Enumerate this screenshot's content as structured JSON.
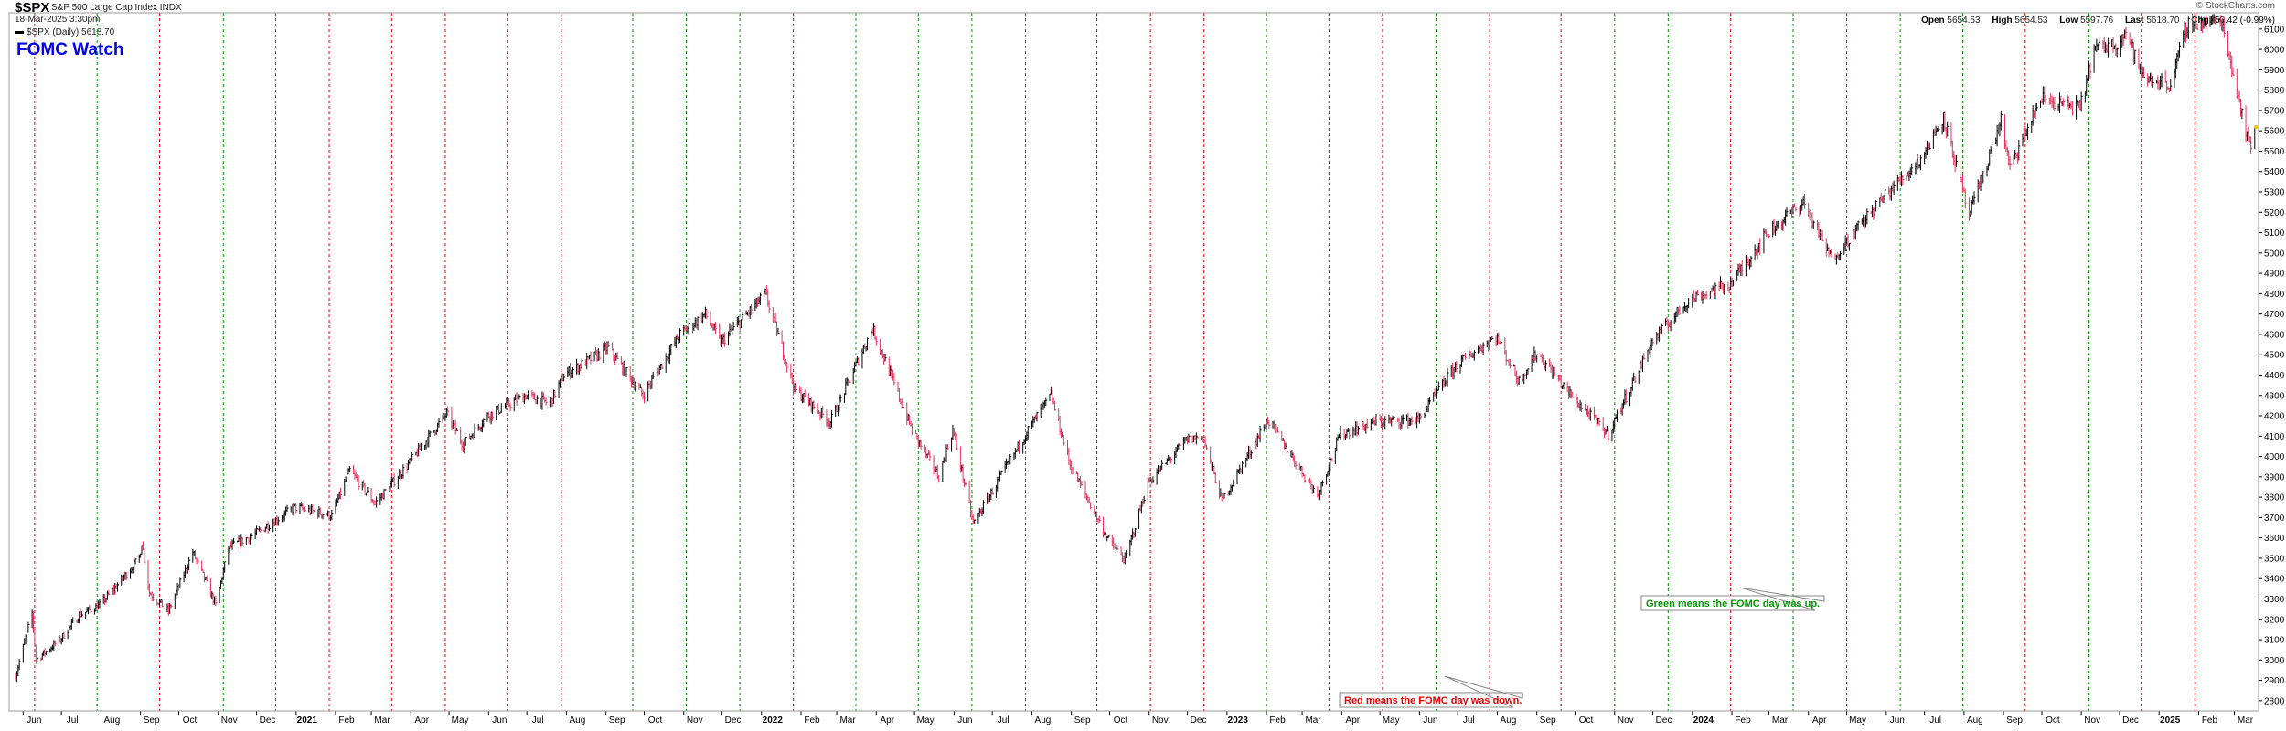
{
  "header": {
    "symbol": "$SPX",
    "description": "S&P 500 Large Cap Index",
    "exchange": "INDX",
    "datetime": "18-Mar-2025 3:30pm",
    "legend_label": "$SPX (Daily) 5618.70",
    "watermark": "© StockCharts.com",
    "quote": {
      "open_label": "Open",
      "open": "5654.53",
      "high_label": "High",
      "high": "5654.53",
      "low_label": "Low",
      "low": "5597.76",
      "last_label": "Last",
      "last": "5618.70",
      "chg_label": "Chg",
      "chg": "-56.42 (-0.99%)"
    }
  },
  "chart_data": {
    "type": "line",
    "title": "FOMC Watch",
    "ylim": [
      2750,
      6180
    ],
    "yscale": "linear",
    "y_ticks": [
      2800,
      2900,
      3000,
      3100,
      3200,
      3300,
      3400,
      3500,
      3600,
      3700,
      3800,
      3900,
      4000,
      4100,
      4200,
      4300,
      4400,
      4500,
      4600,
      4700,
      4800,
      4900,
      5000,
      5100,
      5200,
      5300,
      5400,
      5500,
      5600,
      5700,
      5800,
      5900,
      6000,
      6100
    ],
    "x_ticks": [
      {
        "label": "Jun",
        "year": false
      },
      {
        "label": "Jul",
        "year": false
      },
      {
        "label": "Aug",
        "year": false
      },
      {
        "label": "Sep",
        "year": false
      },
      {
        "label": "Oct",
        "year": false
      },
      {
        "label": "Nov",
        "year": false
      },
      {
        "label": "Dec",
        "year": false
      },
      {
        "label": "2021",
        "year": true
      },
      {
        "label": "Feb",
        "year": false
      },
      {
        "label": "Mar",
        "year": false
      },
      {
        "label": "Apr",
        "year": false
      },
      {
        "label": "May",
        "year": false
      },
      {
        "label": "Jun",
        "year": false
      },
      {
        "label": "Jul",
        "year": false
      },
      {
        "label": "Aug",
        "year": false
      },
      {
        "label": "Sep",
        "year": false
      },
      {
        "label": "Oct",
        "year": false
      },
      {
        "label": "Nov",
        "year": false
      },
      {
        "label": "Dec",
        "year": false
      },
      {
        "label": "2022",
        "year": true
      },
      {
        "label": "Feb",
        "year": false
      },
      {
        "label": "Mar",
        "year": false
      },
      {
        "label": "Apr",
        "year": false
      },
      {
        "label": "May",
        "year": false
      },
      {
        "label": "Jun",
        "year": false
      },
      {
        "label": "Jul",
        "year": false
      },
      {
        "label": "Aug",
        "year": false
      },
      {
        "label": "Sep",
        "year": false
      },
      {
        "label": "Oct",
        "year": false
      },
      {
        "label": "Nov",
        "year": false
      },
      {
        "label": "Dec",
        "year": false
      },
      {
        "label": "2023",
        "year": true
      },
      {
        "label": "Feb",
        "year": false
      },
      {
        "label": "Mar",
        "year": false
      },
      {
        "label": "Apr",
        "year": false
      },
      {
        "label": "May",
        "year": false
      },
      {
        "label": "Jun",
        "year": false
      },
      {
        "label": "Jul",
        "year": false
      },
      {
        "label": "Aug",
        "year": false
      },
      {
        "label": "Sep",
        "year": false
      },
      {
        "label": "Oct",
        "year": false
      },
      {
        "label": "Nov",
        "year": false
      },
      {
        "label": "Dec",
        "year": false
      },
      {
        "label": "2024",
        "year": true
      },
      {
        "label": "Feb",
        "year": false
      },
      {
        "label": "Mar",
        "year": false
      },
      {
        "label": "Apr",
        "year": false
      },
      {
        "label": "May",
        "year": false
      },
      {
        "label": "Jun",
        "year": false
      },
      {
        "label": "Jul",
        "year": false
      },
      {
        "label": "Aug",
        "year": false
      },
      {
        "label": "Sep",
        "year": false
      },
      {
        "label": "Oct",
        "year": false
      },
      {
        "label": "Nov",
        "year": false
      },
      {
        "label": "Dec",
        "year": false
      },
      {
        "label": "2025",
        "year": true
      },
      {
        "label": "Feb",
        "year": false
      },
      {
        "label": "Mar",
        "year": false
      }
    ],
    "fomc_markers": [
      {
        "date": "2020-06-10",
        "result": "down"
      },
      {
        "date": "2020-07-29",
        "result": "up"
      },
      {
        "date": "2020-09-16",
        "result": "down"
      },
      {
        "date": "2020-11-05",
        "result": "up"
      },
      {
        "date": "2020-12-16",
        "result": "up"
      },
      {
        "date": "2021-01-27",
        "result": "down"
      },
      {
        "date": "2021-03-17",
        "result": "down"
      },
      {
        "date": "2021-04-28",
        "result": "down"
      },
      {
        "date": "2021-06-16",
        "result": "down"
      },
      {
        "date": "2021-07-28",
        "result": "down"
      },
      {
        "date": "2021-09-22",
        "result": "up"
      },
      {
        "date": "2021-11-03",
        "result": "up"
      },
      {
        "date": "2021-12-15",
        "result": "up"
      },
      {
        "date": "2022-01-26",
        "result": "down"
      },
      {
        "date": "2022-03-16",
        "result": "up"
      },
      {
        "date": "2022-05-04",
        "result": "up"
      },
      {
        "date": "2022-06-15",
        "result": "up"
      },
      {
        "date": "2022-07-27",
        "result": "up"
      },
      {
        "date": "2022-09-21",
        "result": "down"
      },
      {
        "date": "2022-11-02",
        "result": "down"
      },
      {
        "date": "2022-12-14",
        "result": "down"
      },
      {
        "date": "2023-02-01",
        "result": "up"
      },
      {
        "date": "2023-03-22",
        "result": "down"
      },
      {
        "date": "2023-05-03",
        "result": "down"
      },
      {
        "date": "2023-06-14",
        "result": "up"
      },
      {
        "date": "2023-07-26",
        "result": "down"
      },
      {
        "date": "2023-09-20",
        "result": "down"
      },
      {
        "date": "2023-11-01",
        "result": "up"
      },
      {
        "date": "2023-12-13",
        "result": "up"
      },
      {
        "date": "2024-01-31",
        "result": "down"
      },
      {
        "date": "2024-03-20",
        "result": "up"
      },
      {
        "date": "2024-05-01",
        "result": "down"
      },
      {
        "date": "2024-06-12",
        "result": "up"
      },
      {
        "date": "2024-07-31",
        "result": "up"
      },
      {
        "date": "2024-09-18",
        "result": "down"
      },
      {
        "date": "2024-11-07",
        "result": "up"
      },
      {
        "date": "2024-12-18",
        "result": "down"
      },
      {
        "date": "2025-01-29",
        "result": "down"
      }
    ],
    "series": [
      {
        "values": [
          [
            "2020-05-26",
            2920
          ],
          [
            "2020-06-08",
            3230
          ],
          [
            "2020-06-11",
            3000
          ],
          [
            "2020-06-30",
            3100
          ],
          [
            "2020-07-15",
            3220
          ],
          [
            "2020-07-31",
            3270
          ],
          [
            "2020-08-14",
            3370
          ],
          [
            "2020-08-31",
            3500
          ],
          [
            "2020-09-02",
            3580
          ],
          [
            "2020-09-08",
            3330
          ],
          [
            "2020-09-23",
            3240
          ],
          [
            "2020-10-12",
            3530
          ],
          [
            "2020-10-30",
            3270
          ],
          [
            "2020-11-09",
            3550
          ],
          [
            "2020-11-30",
            3620
          ],
          [
            "2020-12-31",
            3750
          ],
          [
            "2021-01-29",
            3710
          ],
          [
            "2021-02-12",
            3930
          ],
          [
            "2021-03-04",
            3770
          ],
          [
            "2021-03-31",
            3970
          ],
          [
            "2021-04-29",
            4210
          ],
          [
            "2021-05-12",
            4060
          ],
          [
            "2021-05-31",
            4200
          ],
          [
            "2021-06-30",
            4300
          ],
          [
            "2021-07-19",
            4260
          ],
          [
            "2021-07-30",
            4400
          ],
          [
            "2021-08-31",
            4520
          ],
          [
            "2021-09-02",
            4540
          ],
          [
            "2021-09-30",
            4300
          ],
          [
            "2021-10-29",
            4600
          ],
          [
            "2021-11-18",
            4700
          ],
          [
            "2021-11-30",
            4560
          ],
          [
            "2021-12-31",
            4770
          ],
          [
            "2022-01-04",
            4800
          ],
          [
            "2022-01-27",
            4330
          ],
          [
            "2022-02-24",
            4170
          ],
          [
            "2022-03-29",
            4630
          ],
          [
            "2022-04-29",
            4130
          ],
          [
            "2022-05-20",
            3900
          ],
          [
            "2022-05-31",
            4130
          ],
          [
            "2022-06-16",
            3670
          ],
          [
            "2022-07-29",
            4130
          ],
          [
            "2022-08-16",
            4300
          ],
          [
            "2022-08-31",
            3960
          ],
          [
            "2022-09-30",
            3590
          ],
          [
            "2022-10-13",
            3490
          ],
          [
            "2022-10-31",
            3870
          ],
          [
            "2022-11-30",
            4080
          ],
          [
            "2022-12-13",
            4100
          ],
          [
            "2022-12-28",
            3780
          ],
          [
            "2023-02-02",
            4180
          ],
          [
            "2023-03-13",
            3810
          ],
          [
            "2023-03-31",
            4110
          ],
          [
            "2023-04-28",
            4170
          ],
          [
            "2023-05-31",
            4180
          ],
          [
            "2023-06-30",
            4450
          ],
          [
            "2023-07-31",
            4590
          ],
          [
            "2023-08-18",
            4370
          ],
          [
            "2023-09-01",
            4510
          ],
          [
            "2023-09-29",
            4290
          ],
          [
            "2023-10-27",
            4110
          ],
          [
            "2023-11-30",
            4560
          ],
          [
            "2023-12-29",
            4770
          ],
          [
            "2024-01-31",
            4850
          ],
          [
            "2024-02-29",
            5100
          ],
          [
            "2024-03-28",
            5250
          ],
          [
            "2024-04-19",
            4970
          ],
          [
            "2024-05-31",
            5280
          ],
          [
            "2024-06-28",
            5460
          ],
          [
            "2024-07-16",
            5670
          ],
          [
            "2024-08-05",
            5180
          ],
          [
            "2024-08-30",
            5650
          ],
          [
            "2024-09-06",
            5410
          ],
          [
            "2024-09-30",
            5760
          ],
          [
            "2024-10-31",
            5710
          ],
          [
            "2024-11-11",
            6000
          ],
          [
            "2024-11-29",
            6030
          ],
          [
            "2024-12-06",
            6090
          ],
          [
            "2024-12-19",
            5860
          ],
          [
            "2025-01-10",
            5830
          ],
          [
            "2025-01-23",
            6120
          ],
          [
            "2025-02-19",
            6140
          ],
          [
            "2025-03-13",
            5520
          ],
          [
            "2025-03-18",
            5619
          ]
        ]
      }
    ],
    "annotations": [
      {
        "text": "Red means the FOMC day was down.",
        "color": "#ee0000"
      },
      {
        "text": "Green means the FOMC day was up.",
        "color": "#009900"
      }
    ],
    "colors": {
      "up_marker": "#009900",
      "down_marker": "#ee0000",
      "price_down": "#e8315a",
      "price_up": "#000000"
    }
  }
}
